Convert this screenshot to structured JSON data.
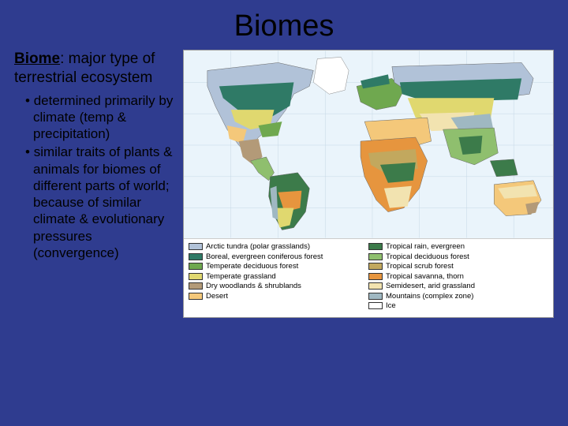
{
  "title": "Biomes",
  "definition": {
    "term": "Biome",
    "rest": ": major type of terrestrial ecosystem"
  },
  "bullets": [
    "determined primarily by climate (temp & precipitation)",
    "similar traits of plants & animals for biomes of different parts of world; because of similar climate & evolutionary pressures (convergence)"
  ],
  "map": {
    "ocean_color": "#eaf4fb",
    "grid_color": "#c5d8e5"
  },
  "legend": {
    "col1": [
      {
        "color": "#b1c2d8",
        "label": "Arctic tundra (polar grasslands)"
      },
      {
        "color": "#2f7a66",
        "label": "Boreal, evergreen coniferous forest"
      },
      {
        "color": "#6fa84f",
        "label": "Temperate deciduous forest"
      },
      {
        "color": "#e0d86f",
        "label": "Temperate grassland"
      },
      {
        "color": "#b39a78",
        "label": "Dry woodlands & shrublands"
      },
      {
        "color": "#f4c87a",
        "label": "Desert"
      }
    ],
    "col2": [
      {
        "color": "#3c7b4a",
        "label": "Tropical rain, evergreen"
      },
      {
        "color": "#8fbf6e",
        "label": "Tropical deciduous forest"
      },
      {
        "color": "#c2a85e",
        "label": "Tropical scrub forest"
      },
      {
        "color": "#e6953e",
        "label": "Tropical savanna, thorn"
      },
      {
        "color": "#f2e3b0",
        "label": "Semidesert, arid grassland"
      },
      {
        "color": "#9fb8c2",
        "label": "Mountains (complex zone)"
      },
      {
        "color": "#ffffff",
        "label": "Ice"
      }
    ]
  }
}
